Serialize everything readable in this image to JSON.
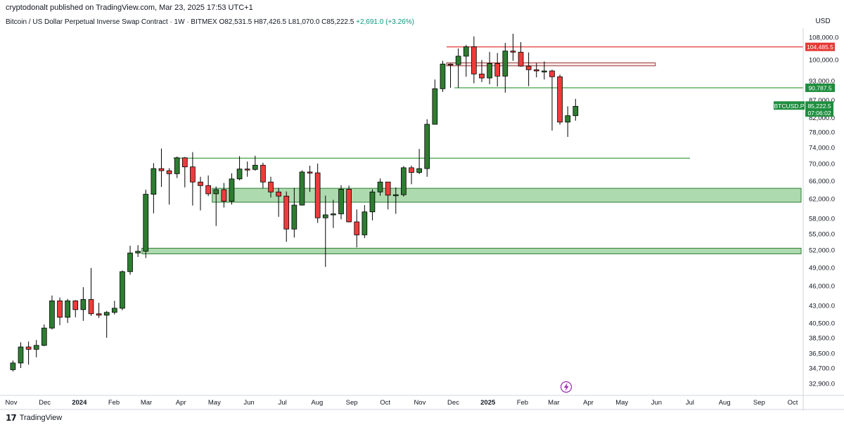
{
  "header": {
    "published": "cryptodonalt published on TradingView.com, Mar 23, 2025 17:53 UTC+1",
    "symbol": "Bitcoin / US Dollar Perpetual Inverse Swap Contract · 1W · BITMEX",
    "open": "O82,531.5",
    "high": "H87,426.5",
    "low": "L81,070.0",
    "close": "C85,222.5",
    "change": "+2,691.0 (+3.26%)"
  },
  "footer": {
    "brand": "TradingView"
  },
  "colors": {
    "up": "#2e7d32",
    "down": "#ef3b3b",
    "zone_fill": "#a5d6a7",
    "zone_stroke": "#2e7d32",
    "supply_fill": "#fce4e4",
    "supply_stroke": "#9a3a3a",
    "resistance": "#e53935",
    "support": "#43a047",
    "price_tag": "#1e8e3e",
    "lightning": "#9c27b0"
  },
  "chart_data": {
    "type": "candlestick",
    "currency": "USD",
    "symbol_tag": "BTCUSD.P",
    "countdown": "07:06:02",
    "y_ticks": [
      "108,000.0",
      "100,000.0",
      "93,000.0",
      "87,000.0",
      "82,000.0",
      "78,000.0",
      "74,000.0",
      "70,000.0",
      "66,000.0",
      "62,000.0",
      "58,000.0",
      "55,000.0",
      "52,000.0",
      "49,000.0",
      "46,000.0",
      "43,000.0",
      "40,500.0",
      "38,500.0",
      "36,500.0",
      "34,700.0",
      "32,900.0"
    ],
    "x_ticks": [
      {
        "label": "Nov",
        "date": "2023-11-01"
      },
      {
        "label": "Dec",
        "date": "2023-12-01"
      },
      {
        "label": "2024",
        "date": "2024-01-01",
        "bold": true
      },
      {
        "label": "Feb",
        "date": "2024-02-01"
      },
      {
        "label": "Mar",
        "date": "2024-03-01"
      },
      {
        "label": "Apr",
        "date": "2024-04-01"
      },
      {
        "label": "May",
        "date": "2024-05-01"
      },
      {
        "label": "Jun",
        "date": "2024-06-01"
      },
      {
        "label": "Jul",
        "date": "2024-07-01"
      },
      {
        "label": "Aug",
        "date": "2024-08-01"
      },
      {
        "label": "Sep",
        "date": "2024-09-01"
      },
      {
        "label": "Oct",
        "date": "2024-10-01"
      },
      {
        "label": "Nov",
        "date": "2024-11-01"
      },
      {
        "label": "Dec",
        "date": "2024-12-01"
      },
      {
        "label": "2025",
        "date": "2025-01-01",
        "bold": true
      },
      {
        "label": "Feb",
        "date": "2025-02-01"
      },
      {
        "label": "Mar",
        "date": "2025-03-01"
      },
      {
        "label": "Apr",
        "date": "2025-04-01"
      },
      {
        "label": "May",
        "date": "2025-05-01"
      },
      {
        "label": "Jun",
        "date": "2025-06-01"
      },
      {
        "label": "Jul",
        "date": "2025-07-01"
      },
      {
        "label": "Aug",
        "date": "2025-08-01"
      },
      {
        "label": "Sep",
        "date": "2025-09-01"
      },
      {
        "label": "Oct",
        "date": "2025-10-01"
      }
    ],
    "price_labels": [
      {
        "text": "104,485.5",
        "price": 104485.5,
        "kind": "resistance"
      },
      {
        "text": "90,787.5",
        "price": 90787.5,
        "kind": "support"
      },
      {
        "text": "85,222.5",
        "price": 85222.5,
        "kind": "current"
      }
    ],
    "horizontal_lines": [
      {
        "price": 104485.5,
        "from": "2024-11-25",
        "to": "2025-10-31",
        "kind": "resistance"
      },
      {
        "price": 90787.5,
        "from": "2024-12-02",
        "to": "2025-10-31",
        "kind": "support"
      },
      {
        "price": 71300,
        "from": "2024-03-25",
        "to": "2025-07-01",
        "kind": "support"
      }
    ],
    "zones": [
      {
        "from": "2024-04-29",
        "to": "2025-10-28",
        "low": 61300,
        "high": 64300,
        "kind": "demand"
      },
      {
        "from": "2024-02-26",
        "to": "2025-10-31",
        "low": 51350,
        "high": 52350,
        "kind": "demand"
      },
      {
        "from": "2024-11-25",
        "to": "2025-05-31",
        "low": 97900,
        "high": 98900,
        "kind": "supply"
      }
    ],
    "candles": [
      {
        "date": "2023-10-30",
        "o": 34500,
        "h": 35600,
        "l": 34300,
        "c": 35300
      },
      {
        "date": "2023-11-06",
        "o": 35300,
        "h": 37900,
        "l": 34700,
        "c": 37300
      },
      {
        "date": "2023-11-13",
        "o": 37300,
        "h": 38000,
        "l": 35100,
        "c": 37000
      },
      {
        "date": "2023-11-20",
        "o": 37000,
        "h": 38200,
        "l": 36000,
        "c": 37500
      },
      {
        "date": "2023-11-27",
        "o": 37500,
        "h": 40300,
        "l": 37400,
        "c": 39800
      },
      {
        "date": "2023-12-04",
        "o": 39800,
        "h": 44500,
        "l": 39600,
        "c": 43700
      },
      {
        "date": "2023-12-11",
        "o": 43700,
        "h": 44200,
        "l": 40200,
        "c": 41300
      },
      {
        "date": "2023-12-18",
        "o": 41300,
        "h": 44000,
        "l": 40500,
        "c": 43700
      },
      {
        "date": "2023-12-25",
        "o": 43700,
        "h": 43800,
        "l": 41300,
        "c": 42400
      },
      {
        "date": "2024-01-01",
        "o": 42400,
        "h": 45800,
        "l": 40800,
        "c": 43900
      },
      {
        "date": "2024-01-08",
        "o": 43900,
        "h": 48900,
        "l": 41500,
        "c": 41800
      },
      {
        "date": "2024-01-15",
        "o": 41800,
        "h": 43400,
        "l": 41200,
        "c": 41600
      },
      {
        "date": "2024-01-22",
        "o": 41600,
        "h": 42200,
        "l": 38500,
        "c": 42000
      },
      {
        "date": "2024-01-29",
        "o": 42000,
        "h": 43700,
        "l": 41700,
        "c": 42600
      },
      {
        "date": "2024-02-05",
        "o": 42600,
        "h": 48500,
        "l": 42300,
        "c": 48300
      },
      {
        "date": "2024-02-12",
        "o": 48300,
        "h": 52800,
        "l": 47800,
        "c": 51500
      },
      {
        "date": "2024-02-19",
        "o": 51500,
        "h": 52900,
        "l": 50800,
        "c": 51800
      },
      {
        "date": "2024-02-26",
        "o": 51800,
        "h": 64000,
        "l": 50600,
        "c": 63000
      },
      {
        "date": "2024-03-04",
        "o": 63000,
        "h": 70100,
        "l": 59000,
        "c": 68800
      },
      {
        "date": "2024-03-11",
        "o": 68800,
        "h": 73700,
        "l": 64600,
        "c": 68300
      },
      {
        "date": "2024-03-18",
        "o": 68300,
        "h": 68900,
        "l": 60800,
        "c": 67600
      },
      {
        "date": "2024-03-25",
        "o": 67600,
        "h": 71700,
        "l": 66600,
        "c": 71400
      },
      {
        "date": "2024-04-01",
        "o": 71400,
        "h": 71600,
        "l": 64500,
        "c": 69200
      },
      {
        "date": "2024-04-08",
        "o": 69200,
        "h": 72800,
        "l": 60600,
        "c": 65700
      },
      {
        "date": "2024-04-15",
        "o": 65700,
        "h": 66900,
        "l": 59600,
        "c": 64900
      },
      {
        "date": "2024-04-22",
        "o": 64900,
        "h": 67200,
        "l": 62600,
        "c": 63100
      },
      {
        "date": "2024-04-29",
        "o": 63100,
        "h": 64700,
        "l": 56500,
        "c": 64000
      },
      {
        "date": "2024-05-06",
        "o": 64000,
        "h": 65500,
        "l": 60200,
        "c": 61500
      },
      {
        "date": "2024-05-13",
        "o": 61500,
        "h": 67700,
        "l": 60800,
        "c": 66400
      },
      {
        "date": "2024-05-20",
        "o": 66400,
        "h": 71800,
        "l": 66100,
        "c": 68700
      },
      {
        "date": "2024-05-27",
        "o": 68700,
        "h": 70500,
        "l": 66900,
        "c": 68600
      },
      {
        "date": "2024-06-03",
        "o": 68600,
        "h": 71900,
        "l": 68300,
        "c": 69600
      },
      {
        "date": "2024-06-10",
        "o": 69600,
        "h": 70200,
        "l": 64300,
        "c": 65700
      },
      {
        "date": "2024-06-17",
        "o": 65700,
        "h": 66900,
        "l": 62300,
        "c": 63500
      },
      {
        "date": "2024-06-24",
        "o": 63500,
        "h": 64400,
        "l": 58300,
        "c": 62600
      },
      {
        "date": "2024-07-01",
        "o": 62600,
        "h": 63600,
        "l": 53500,
        "c": 55900
      },
      {
        "date": "2024-07-08",
        "o": 55900,
        "h": 64400,
        "l": 54300,
        "c": 60700
      },
      {
        "date": "2024-07-15",
        "o": 60700,
        "h": 68400,
        "l": 60600,
        "c": 68000
      },
      {
        "date": "2024-07-22",
        "o": 68000,
        "h": 69500,
        "l": 63500,
        "c": 67800
      },
      {
        "date": "2024-07-29",
        "o": 67800,
        "h": 70000,
        "l": 57100,
        "c": 58100
      },
      {
        "date": "2024-08-05",
        "o": 58100,
        "h": 62700,
        "l": 49100,
        "c": 58700
      },
      {
        "date": "2024-08-12",
        "o": 58700,
        "h": 61800,
        "l": 56100,
        "c": 58900
      },
      {
        "date": "2024-08-19",
        "o": 58900,
        "h": 65000,
        "l": 57800,
        "c": 64100
      },
      {
        "date": "2024-08-26",
        "o": 64100,
        "h": 64900,
        "l": 57200,
        "c": 57300
      },
      {
        "date": "2024-09-02",
        "o": 57300,
        "h": 59800,
        "l": 52500,
        "c": 54800
      },
      {
        "date": "2024-09-09",
        "o": 54800,
        "h": 60700,
        "l": 54200,
        "c": 59300
      },
      {
        "date": "2024-09-16",
        "o": 59300,
        "h": 64100,
        "l": 57600,
        "c": 63500
      },
      {
        "date": "2024-09-23",
        "o": 63500,
        "h": 66500,
        "l": 62700,
        "c": 65700
      },
      {
        "date": "2024-09-30",
        "o": 65700,
        "h": 65400,
        "l": 59800,
        "c": 62800
      },
      {
        "date": "2024-10-07",
        "o": 62800,
        "h": 64500,
        "l": 58900,
        "c": 62900
      },
      {
        "date": "2024-10-14",
        "o": 62900,
        "h": 69400,
        "l": 62500,
        "c": 69000
      },
      {
        "date": "2024-10-21",
        "o": 69000,
        "h": 69500,
        "l": 65200,
        "c": 67900
      },
      {
        "date": "2024-10-28",
        "o": 67900,
        "h": 73600,
        "l": 67500,
        "c": 68800
      },
      {
        "date": "2024-11-04",
        "o": 68800,
        "h": 81500,
        "l": 66900,
        "c": 80100
      },
      {
        "date": "2024-11-11",
        "o": 80100,
        "h": 93400,
        "l": 80000,
        "c": 90500
      },
      {
        "date": "2024-11-18",
        "o": 90500,
        "h": 99600,
        "l": 89500,
        "c": 98500
      },
      {
        "date": "2024-11-25",
        "o": 98500,
        "h": 98700,
        "l": 90800,
        "c": 98300
      },
      {
        "date": "2024-12-02",
        "o": 98300,
        "h": 103900,
        "l": 90800,
        "c": 101200
      },
      {
        "date": "2024-12-09",
        "o": 101200,
        "h": 105200,
        "l": 94300,
        "c": 104500
      },
      {
        "date": "2024-12-16",
        "o": 104500,
        "h": 108300,
        "l": 92200,
        "c": 95200
      },
      {
        "date": "2024-12-23",
        "o": 95200,
        "h": 99900,
        "l": 92600,
        "c": 93900
      },
      {
        "date": "2024-12-30",
        "o": 93900,
        "h": 102700,
        "l": 91900,
        "c": 98700
      },
      {
        "date": "2025-01-06",
        "o": 98700,
        "h": 102300,
        "l": 91200,
        "c": 94500
      },
      {
        "date": "2025-01-13",
        "o": 94500,
        "h": 105900,
        "l": 89300,
        "c": 103000
      },
      {
        "date": "2025-01-20",
        "o": 103000,
        "h": 109300,
        "l": 99600,
        "c": 102600
      },
      {
        "date": "2025-01-27",
        "o": 102600,
        "h": 106200,
        "l": 97600,
        "c": 97800
      },
      {
        "date": "2025-02-03",
        "o": 97800,
        "h": 102500,
        "l": 91300,
        "c": 96600
      },
      {
        "date": "2025-02-10",
        "o": 96600,
        "h": 98800,
        "l": 94100,
        "c": 96200
      },
      {
        "date": "2025-02-17",
        "o": 96200,
        "h": 99400,
        "l": 93400,
        "c": 96200
      },
      {
        "date": "2025-02-24",
        "o": 96200,
        "h": 96600,
        "l": 78400,
        "c": 94300
      },
      {
        "date": "2025-03-03",
        "o": 94300,
        "h": 95000,
        "l": 80000,
        "c": 80700
      },
      {
        "date": "2025-03-10",
        "o": 80700,
        "h": 85200,
        "l": 76700,
        "c": 82500
      },
      {
        "date": "2025-03-17",
        "o": 82500,
        "h": 87400,
        "l": 81100,
        "c": 85200
      }
    ]
  }
}
